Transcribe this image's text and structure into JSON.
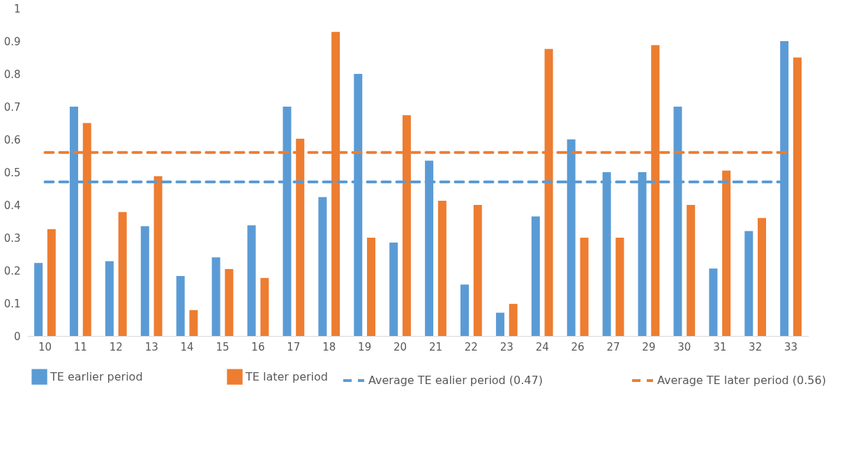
{
  "chart_data": {
    "type": "bar",
    "categories": [
      "10",
      "11",
      "12",
      "13",
      "14",
      "15",
      "16",
      "17",
      "18",
      "19",
      "20",
      "21",
      "22",
      "23",
      "24",
      "26",
      "27",
      "29",
      "30",
      "31",
      "32",
      "33"
    ],
    "series": [
      {
        "name": "TE earlier period",
        "color": "#5b9bd5",
        "values": [
          0.223,
          0.7,
          0.228,
          0.335,
          0.183,
          0.24,
          0.338,
          0.7,
          0.424,
          0.8,
          0.285,
          0.535,
          0.157,
          0.071,
          0.365,
          0.6,
          0.5,
          0.5,
          0.7,
          0.206,
          0.32,
          0.9
        ]
      },
      {
        "name": "TE later period",
        "color": "#ed7d31",
        "values": [
          0.326,
          0.65,
          0.378,
          0.488,
          0.079,
          0.204,
          0.177,
          0.602,
          0.928,
          0.3,
          0.674,
          0.413,
          0.4,
          0.098,
          0.876,
          0.3,
          0.3,
          0.888,
          0.4,
          0.505,
          0.36,
          0.85
        ]
      },
      {
        "name": "Average TE ealier period (0.47)",
        "type": "line",
        "line_style": "dashed",
        "color": "#5b9bd5",
        "values": [
          0.47,
          0.47,
          0.47,
          0.47,
          0.47,
          0.47,
          0.47,
          0.47,
          0.47,
          0.47,
          0.47,
          0.47,
          0.47,
          0.47,
          0.47,
          0.47,
          0.47,
          0.47,
          0.47,
          0.47,
          0.47,
          0.47
        ]
      },
      {
        "name": "Average TE later period (0.56)",
        "type": "line",
        "line_style": "dashed",
        "color": "#ed7d31",
        "values": [
          0.56,
          0.56,
          0.56,
          0.56,
          0.56,
          0.56,
          0.56,
          0.56,
          0.56,
          0.56,
          0.56,
          0.56,
          0.56,
          0.56,
          0.56,
          0.56,
          0.56,
          0.56,
          0.56,
          0.56,
          0.56,
          0.56
        ]
      }
    ],
    "ylim": [
      0,
      1
    ],
    "yticks": [
      0,
      0.1,
      0.2,
      0.3,
      0.4,
      0.5,
      0.6,
      0.7,
      0.8,
      0.9,
      1
    ],
    "grid": false,
    "legend": "bottom"
  }
}
